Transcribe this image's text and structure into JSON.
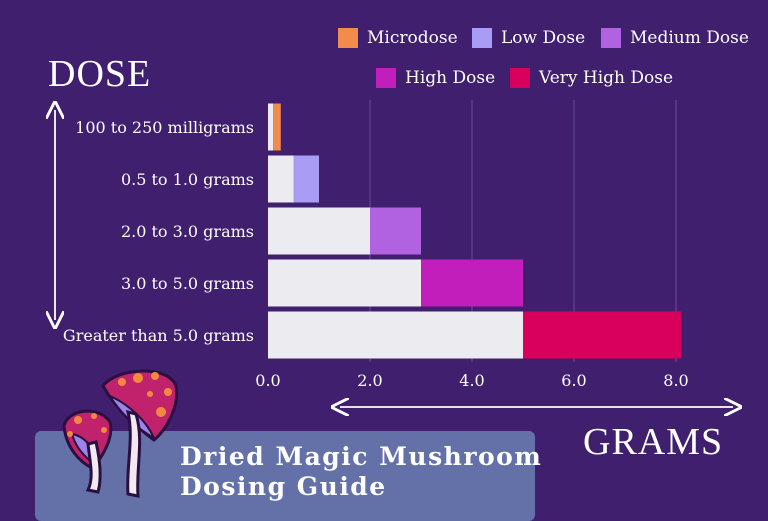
{
  "chart_data": {
    "type": "bar",
    "orientation": "horizontal",
    "stacked": true,
    "categories": [
      "100 to 250 milligrams",
      "0.5 to 1.0 grams",
      "2.0 to 3.0 grams",
      "3.0 to 5.0 grams",
      "Greater than 5.0 grams"
    ],
    "series": [
      {
        "name": "",
        "color": "#ebebf0",
        "values": [
          0.1,
          0.5,
          2.0,
          3.0,
          5.0
        ]
      },
      {
        "name": "Microdose",
        "color": "#f28c4c",
        "values": [
          0.15,
          0,
          0,
          0,
          0
        ]
      },
      {
        "name": "Low Dose",
        "color": "#a99cf5",
        "values": [
          0,
          0.5,
          0,
          0,
          0
        ]
      },
      {
        "name": "Medium Dose",
        "color": "#b162e0",
        "values": [
          0,
          0,
          1.0,
          0,
          0
        ]
      },
      {
        "name": "High Dose",
        "color": "#c21ebc",
        "values": [
          0,
          0,
          0,
          2.0,
          0
        ]
      },
      {
        "name": "Very High Dose",
        "color": "#d8005c",
        "values": [
          0,
          0,
          0,
          0,
          3.1
        ]
      }
    ],
    "xticks": [
      "0.0",
      "2.0",
      "4.0",
      "6.0",
      "8.0"
    ],
    "xlim": [
      0,
      8
    ],
    "xlabel": "GRAMS",
    "ylabel": "DOSE",
    "grid": "vertical",
    "legend_position": "top-right"
  },
  "legend": [
    {
      "label": "Microdose",
      "color": "#f28c4c"
    },
    {
      "label": "Low Dose",
      "color": "#a99cf5"
    },
    {
      "label": "Medium Dose",
      "color": "#b162e0"
    },
    {
      "label": "High Dose",
      "color": "#c21ebc"
    },
    {
      "label": "Very High Dose",
      "color": "#d8005c"
    }
  ],
  "footer": {
    "title_line1": "Dried Magic Mushroom",
    "title_line2": "Dosing Guide",
    "icon": "mushroom-icon"
  },
  "colors": {
    "background": "#3f1f6e",
    "footer_box": "#6470a8",
    "grid": "#6a4f97"
  }
}
